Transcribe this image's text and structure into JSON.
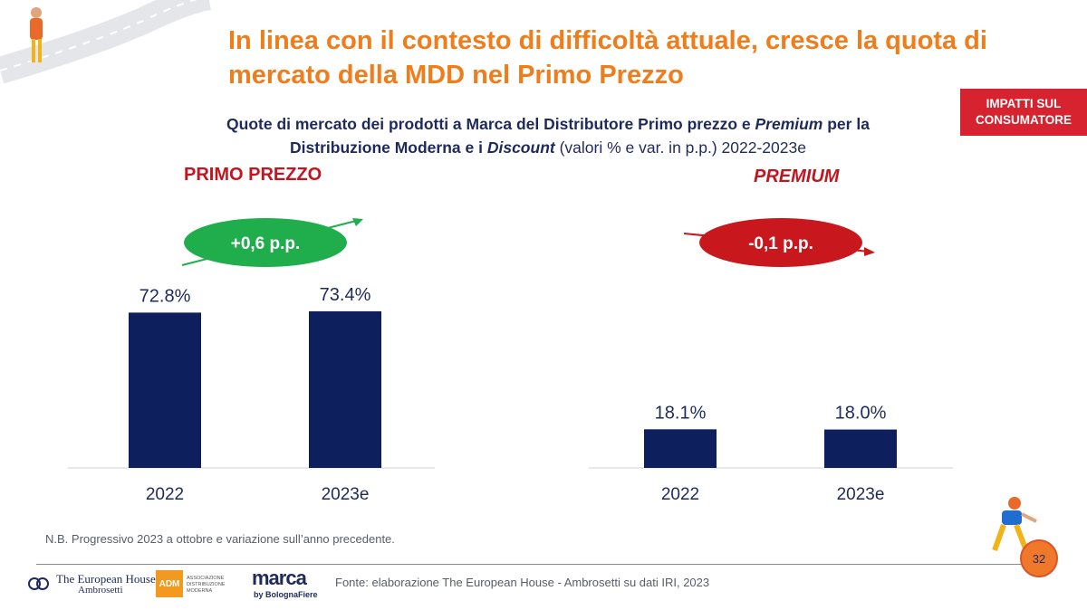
{
  "title": "In linea con il contesto di difficoltà attuale, cresce la quota di mercato della MDD nel Primo Prezzo",
  "badge": {
    "line1": "IMPATTI SUL",
    "line2": "CONSUMATORE"
  },
  "subtitle": {
    "part1": "Quote di mercato dei prodotti a Marca del Distributore Primo prezzo e ",
    "part2": "Premium",
    "part3": " per la",
    "part4": "Distribuzione Moderna e i ",
    "part5": "Discount",
    "part6": " (valori % e var. in p.p.) 2022-2023e"
  },
  "colors": {
    "bar": "#0d1f5c",
    "title": "#f07d1c",
    "section": "#c1151f",
    "positive": "#1fae4b",
    "negative": "#c8171d"
  },
  "chart_data": [
    {
      "type": "bar",
      "title": "PRIMO PREZZO",
      "categories": [
        "2022",
        "2023e"
      ],
      "values": [
        72.8,
        73.4
      ],
      "value_labels": [
        "72.8%",
        "73.4%"
      ],
      "change_label": "+0,6 p.p.",
      "change_direction": "up",
      "unit": "%"
    },
    {
      "type": "bar",
      "title": "PREMIUM",
      "categories": [
        "2022",
        "2023e"
      ],
      "values": [
        18.1,
        18.0
      ],
      "value_labels": [
        "18.1%",
        "18.0%"
      ],
      "change_label": "-0,1 p.p.",
      "change_direction": "down",
      "unit": "%"
    }
  ],
  "note": "N.B. Progressivo 2023 a ottobre e variazione sull’anno precedente.",
  "source": "Fonte: elaborazione The European House - Ambrosetti su dati IRI, 2023",
  "page_number": "32",
  "logos": {
    "teh_line1": "The European House",
    "teh_line2": "Ambrosetti",
    "adm": "ADM",
    "adm_line1": "ASSOCIAZIONE",
    "adm_line2": "DISTRIBUZIONE MODERNA",
    "marca": "marca",
    "marca_by": "by BolognaFiere"
  }
}
